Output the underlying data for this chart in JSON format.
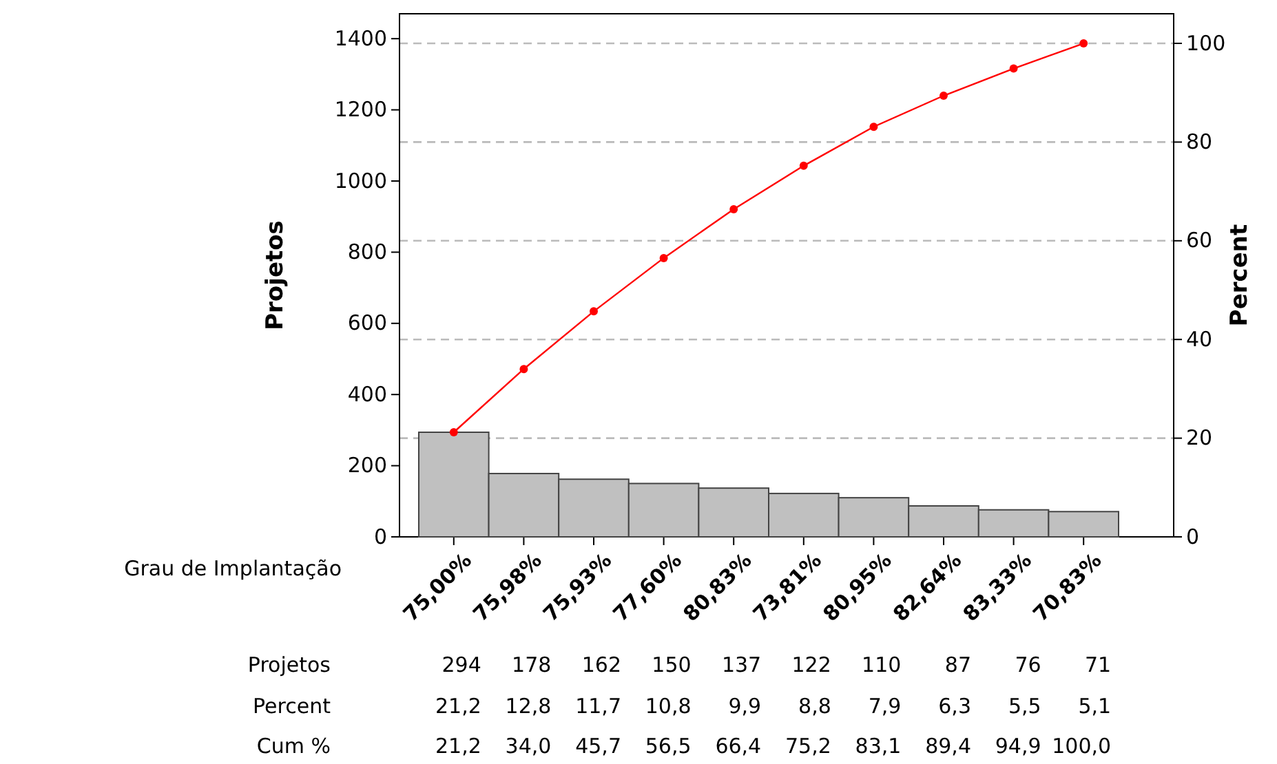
{
  "chart_data": {
    "type": "bar",
    "xlabel": "Grau de Implantação",
    "ylabel": "Projetos",
    "y2label": "Percent",
    "categories": [
      "75,00%",
      "75,98%",
      "75,93%",
      "77,60%",
      "80,83%",
      "73,81%",
      "80,95%",
      "82,64%",
      "83,33%",
      "70,83%"
    ],
    "series": [
      {
        "color": "#c0c0c0",
        "values": [
          294,
          178,
          162,
          150,
          137,
          122,
          110,
          87,
          76,
          71
        ],
        "value_labels": [
          "294",
          "178",
          "162",
          "150",
          "137",
          "122",
          "110",
          "87",
          "76",
          "71"
        ]
      },
      {
        "type": "line",
        "axis": "y2",
        "color": "#ff0000",
        "marker": "circle",
        "values": [
          21.2,
          34.0,
          45.7,
          56.5,
          66.4,
          75.2,
          83.1,
          89.4,
          94.9,
          100.0
        ],
        "value_labels": [
          "21,2",
          "34,0",
          "45,7",
          "56,5",
          "66,4",
          "75,2",
          "83,1",
          "89,4",
          "94,9",
          "100,0"
        ]
      }
    ],
    "annotations": [
      "Projetos",
      "Percent",
      "Cum %",
      "21,2",
      "12,8",
      "11,7",
      "10,8",
      "9,9",
      "8,8",
      "7,9",
      "6,3",
      "5,5",
      "5,1"
    ],
    "ylim": [
      0,
      1470
    ],
    "yticks": [
      0,
      200,
      400,
      600,
      800,
      1000,
      1200,
      1400
    ],
    "y2lim": [
      0,
      106
    ],
    "y2ticks": [
      0,
      20,
      40,
      60,
      80,
      100
    ],
    "grid": "y",
    "line_style": "solid"
  }
}
